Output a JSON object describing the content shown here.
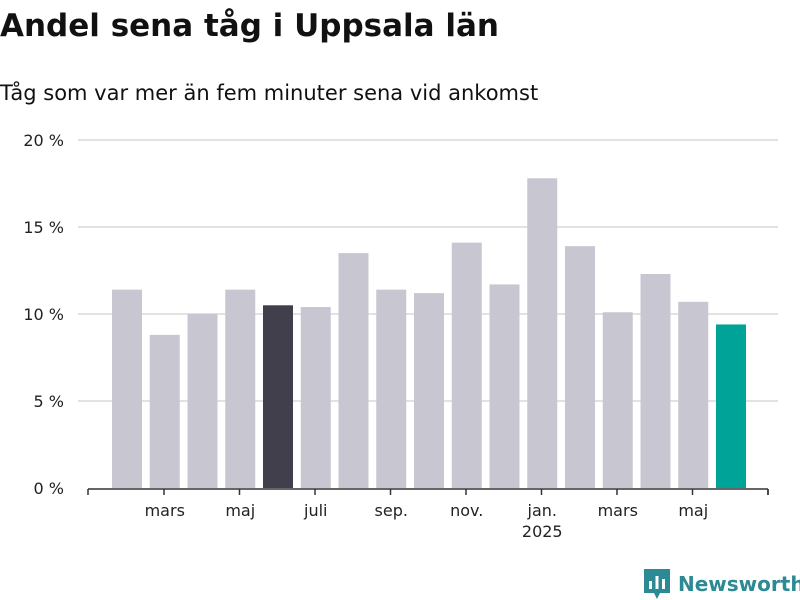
{
  "title": "Andel sena tåg i Uppsala län",
  "subtitle": "Tåg som var mer än fem minuter sena vid ankomst",
  "brand": {
    "name": "Newsworthy",
    "icon": "newsworthy-logo-icon",
    "color": "#2b8a94"
  },
  "colors": {
    "bar": "#c8c7d1",
    "highlight": "#403f4b",
    "latest": "#00a398",
    "grid": "#d9d9d9",
    "axis": "#333333"
  },
  "chart_data": {
    "type": "bar",
    "title": "Andel sena tåg i Uppsala län",
    "subtitle": "Tåg som var mer än fem minuter sena vid ankomst",
    "xlabel": "",
    "ylabel": "",
    "ylim": [
      0,
      20
    ],
    "yticks": [
      0,
      5,
      10,
      15,
      20
    ],
    "ytick_labels": [
      "0 %",
      "5 %",
      "10 %",
      "15 %",
      "20 %"
    ],
    "grid": true,
    "legend": "none",
    "x_tick_labels": [
      "mars",
      "maj",
      "juli",
      "sep.",
      "nov.",
      "jan.",
      "mars",
      "maj"
    ],
    "x_tick_bar_index": [
      1,
      3,
      5,
      7,
      9,
      11,
      13,
      15
    ],
    "year_label": {
      "text": "2025",
      "bar_index": 11
    },
    "values": [
      11.4,
      8.8,
      10.0,
      11.4,
      10.5,
      10.4,
      13.5,
      11.4,
      11.2,
      14.1,
      11.7,
      17.8,
      13.9,
      10.1,
      12.3,
      10.7,
      9.4
    ],
    "highlight_index": 4,
    "latest_index": 16
  }
}
